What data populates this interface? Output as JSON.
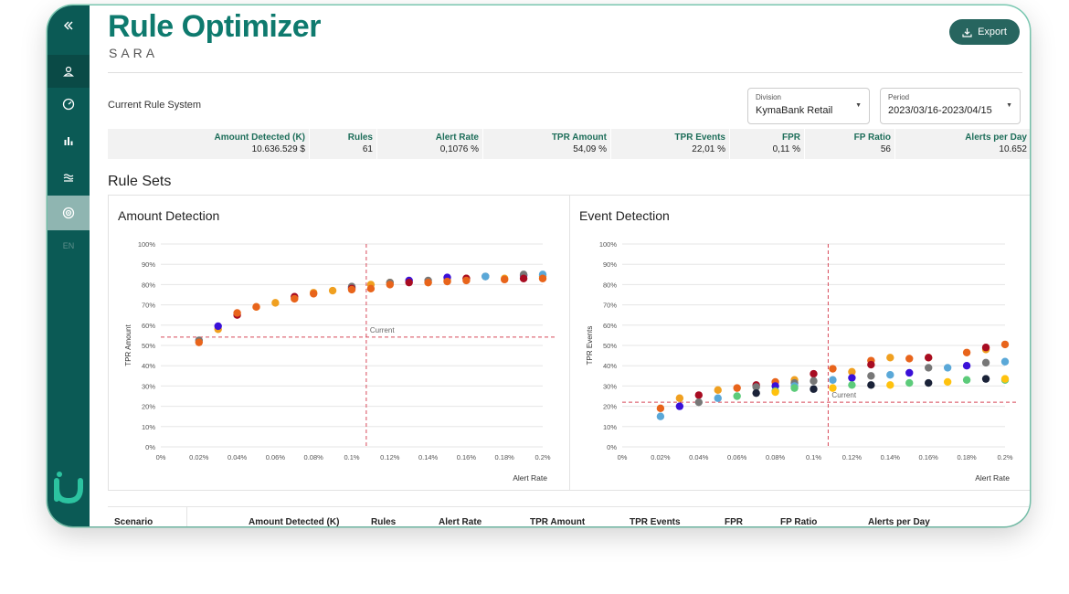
{
  "sidebar": {
    "items": [
      {
        "icon": "chevrons-left-icon"
      },
      {
        "icon": "user-icon"
      },
      {
        "icon": "gauge-icon"
      },
      {
        "icon": "bar-chart-icon"
      },
      {
        "icon": "waves-icon"
      },
      {
        "icon": "target-icon"
      }
    ],
    "lang": "EN",
    "logo": "iu"
  },
  "header": {
    "title": "Rule Optimizer",
    "subtitle": "SARA",
    "export_label": "Export"
  },
  "filters": {
    "current_rule_label": "Current Rule System",
    "division": {
      "label": "Division",
      "value": "KymaBank Retail"
    },
    "period": {
      "label": "Period",
      "value": "2023/03/16-2023/04/15"
    }
  },
  "summary": {
    "headers": [
      "Amount Detected (K)",
      "Rules",
      "Alert Rate",
      "TPR Amount",
      "TPR Events",
      "FPR",
      "FP Ratio",
      "Alerts per Day"
    ],
    "values": [
      "10.636.529 $",
      "61",
      "0,1076 %",
      "54,09 %",
      "22,01 %",
      "0,11 %",
      "56",
      "10.652"
    ]
  },
  "rule_sets_title": "Rule Sets",
  "colors": {
    "orange": "#f0a020",
    "red": "#e8641b",
    "crimson": "#a80c22",
    "blue": "#3a10d8",
    "gray": "#777777",
    "lightblue": "#5aa8d8",
    "green": "#5ccb7a",
    "navy": "#1a2238",
    "yellow": "#ffc20e",
    "accent": "#0b5a55"
  },
  "chart_data": [
    {
      "type": "scatter",
      "title": "Amount Detection",
      "xlabel": "Alert Rate",
      "ylabel": "TPR Amount",
      "xlim": [
        0,
        0.2
      ],
      "ylim": [
        0,
        100
      ],
      "x_ticks": [
        "0%",
        "0.02%",
        "0.04%",
        "0.06%",
        "0.08%",
        "0.1%",
        "0.12%",
        "0.14%",
        "0.16%",
        "0.18%",
        "0.2%"
      ],
      "y_ticks": [
        "0%",
        "10%",
        "20%",
        "30%",
        "40%",
        "50%",
        "60%",
        "70%",
        "80%",
        "90%",
        "100%"
      ],
      "current": {
        "x": 0.1076,
        "y": 54.09,
        "label": "Current"
      },
      "series": [
        {
          "color": "orange",
          "points": [
            [
              0.03,
              58
            ],
            [
              0.05,
              69
            ],
            [
              0.06,
              71
            ],
            [
              0.08,
              76
            ],
            [
              0.09,
              77
            ],
            [
              0.11,
              80
            ],
            [
              0.12,
              81
            ],
            [
              0.14,
              81
            ],
            [
              0.15,
              82
            ],
            [
              0.16,
              83
            ],
            [
              0.18,
              83
            ],
            [
              0.2,
              84
            ]
          ]
        },
        {
          "color": "blue",
          "points": [
            [
              0.03,
              59.5
            ],
            [
              0.1,
              78.5
            ],
            [
              0.13,
              82
            ],
            [
              0.15,
              83.5
            ],
            [
              0.19,
              84.5
            ]
          ]
        },
        {
          "color": "gray",
          "points": [
            [
              0.02,
              52.5
            ],
            [
              0.1,
              79
            ],
            [
              0.12,
              81
            ],
            [
              0.14,
              82
            ],
            [
              0.17,
              84
            ],
            [
              0.19,
              85
            ]
          ]
        },
        {
          "color": "lightblue",
          "points": [
            [
              0.17,
              84
            ],
            [
              0.2,
              85
            ]
          ]
        },
        {
          "color": "crimson",
          "points": [
            [
              0.04,
              65
            ],
            [
              0.07,
              74
            ],
            [
              0.1,
              78
            ],
            [
              0.13,
              81
            ],
            [
              0.16,
              83
            ],
            [
              0.19,
              83
            ]
          ]
        },
        {
          "color": "red",
          "points": [
            [
              0.02,
              51.5
            ],
            [
              0.04,
              66
            ],
            [
              0.05,
              69
            ],
            [
              0.07,
              73
            ],
            [
              0.08,
              75.5
            ],
            [
              0.1,
              77.5
            ],
            [
              0.11,
              78
            ],
            [
              0.12,
              80
            ],
            [
              0.14,
              81
            ],
            [
              0.15,
              81.5
            ],
            [
              0.16,
              82
            ],
            [
              0.18,
              82.5
            ],
            [
              0.2,
              83
            ]
          ]
        }
      ]
    },
    {
      "type": "scatter",
      "title": "Event Detection",
      "xlabel": "Alert Rate",
      "ylabel": "TPR Events",
      "xlim": [
        0,
        0.2
      ],
      "ylim": [
        0,
        100
      ],
      "x_ticks": [
        "0%",
        "0.02%",
        "0.04%",
        "0.06%",
        "0.08%",
        "0.1%",
        "0.12%",
        "0.14%",
        "0.16%",
        "0.18%",
        "0.2%"
      ],
      "y_ticks": [
        "0%",
        "10%",
        "20%",
        "30%",
        "40%",
        "50%",
        "60%",
        "70%",
        "80%",
        "90%",
        "100%"
      ],
      "current": {
        "x": 0.1076,
        "y": 22.01,
        "label": "Current"
      },
      "series": [
        {
          "color": "red",
          "points": [
            [
              0.02,
              19
            ],
            [
              0.06,
              29
            ],
            [
              0.08,
              32
            ],
            [
              0.11,
              38.5
            ],
            [
              0.13,
              42.5
            ],
            [
              0.15,
              43.5
            ],
            [
              0.18,
              46.5
            ],
            [
              0.2,
              50.5
            ]
          ]
        },
        {
          "color": "orange",
          "points": [
            [
              0.03,
              24
            ],
            [
              0.05,
              28
            ],
            [
              0.09,
              33
            ],
            [
              0.12,
              37
            ],
            [
              0.14,
              44
            ],
            [
              0.16,
              44
            ],
            [
              0.19,
              48
            ]
          ]
        },
        {
          "color": "crimson",
          "points": [
            [
              0.04,
              25.5
            ],
            [
              0.07,
              30.5
            ],
            [
              0.1,
              36
            ],
            [
              0.13,
              40.5
            ],
            [
              0.16,
              44
            ],
            [
              0.19,
              49
            ]
          ]
        },
        {
          "color": "blue",
          "points": [
            [
              0.03,
              20
            ],
            [
              0.08,
              30
            ],
            [
              0.12,
              34
            ],
            [
              0.15,
              36.5
            ],
            [
              0.18,
              40
            ]
          ]
        },
        {
          "color": "gray",
          "points": [
            [
              0.04,
              22
            ],
            [
              0.07,
              29.5
            ],
            [
              0.09,
              31.5
            ],
            [
              0.1,
              32.5
            ],
            [
              0.13,
              35
            ],
            [
              0.16,
              39
            ],
            [
              0.19,
              41.5
            ]
          ]
        },
        {
          "color": "lightblue",
          "points": [
            [
              0.02,
              15
            ],
            [
              0.05,
              24
            ],
            [
              0.09,
              30
            ],
            [
              0.11,
              33
            ],
            [
              0.14,
              35.5
            ],
            [
              0.17,
              39
            ],
            [
              0.2,
              42
            ]
          ]
        },
        {
          "color": "green",
          "points": [
            [
              0.06,
              25
            ],
            [
              0.08,
              27.5
            ],
            [
              0.09,
              29
            ],
            [
              0.12,
              30.5
            ],
            [
              0.15,
              31.5
            ],
            [
              0.18,
              33
            ],
            [
              0.2,
              33
            ]
          ]
        },
        {
          "color": "navy",
          "points": [
            [
              0.07,
              26.5
            ],
            [
              0.1,
              28.5
            ],
            [
              0.13,
              30.5
            ],
            [
              0.16,
              31.5
            ],
            [
              0.19,
              33.5
            ]
          ]
        },
        {
          "color": "yellow",
          "points": [
            [
              0.08,
              27
            ],
            [
              0.11,
              29
            ],
            [
              0.14,
              30.5
            ],
            [
              0.17,
              32
            ],
            [
              0.2,
              33.5
            ]
          ]
        }
      ]
    }
  ],
  "bottom_table": {
    "headers": [
      "Scenario",
      "Amount Detected (K)",
      "Rules",
      "Alert Rate",
      "TPR Amount",
      "TPR Events",
      "FPR",
      "FP Ratio",
      "Alerts per Day"
    ]
  }
}
